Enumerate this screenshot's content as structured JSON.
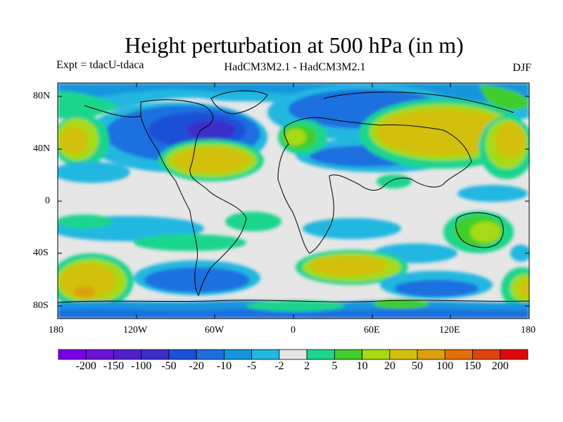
{
  "header": {
    "title": "Height perturbation at 500 hPa (in m)",
    "experiment": "Expt = tdacU-tdaca",
    "models": "HadCM3M2.1 - HadCM3M2.1",
    "season": "DJF"
  },
  "axes": {
    "lat_ticks": [
      "80N",
      "40N",
      "0",
      "40S",
      "80S"
    ],
    "lon_ticks": [
      "180",
      "120W",
      "60W",
      "0",
      "60E",
      "120E",
      "180"
    ]
  },
  "colorbar": {
    "colors": [
      "#7b00e8",
      "#6a13d8",
      "#5220c9",
      "#3a2ec9",
      "#1c4fd8",
      "#1d6fe0",
      "#1395dd",
      "#22b7e0",
      "#e6e6e6",
      "#1fd58c",
      "#3fce29",
      "#a6da14",
      "#d2c010",
      "#dca00b",
      "#e0700a",
      "#e0430d",
      "#dc0a0a"
    ],
    "labels": [
      "-200",
      "-150",
      "-100",
      "-50",
      "-20",
      "-10",
      "-5",
      "-2",
      "2",
      "5",
      "10",
      "20",
      "50",
      "100",
      "150",
      "200"
    ]
  },
  "chart_data": {
    "type": "contour-map",
    "variable": "Height perturbation at 500 hPa",
    "units": "m",
    "levels": [
      -200,
      -150,
      -100,
      -50,
      -20,
      -10,
      -5,
      -2,
      2,
      5,
      10,
      20,
      50,
      100,
      150,
      200
    ],
    "regions": [
      {
        "feature": "low",
        "lon_range": [
          -110,
          -20
        ],
        "lat_range": [
          40,
          70
        ],
        "value_range": [
          -50,
          -20
        ]
      },
      {
        "feature": "low",
        "lon_range": [
          20,
          140
        ],
        "lat_range": [
          50,
          80
        ],
        "value_range": [
          -20,
          -10
        ]
      },
      {
        "feature": "low",
        "lon_range": [
          30,
          100
        ],
        "lat_range": [
          25,
          45
        ],
        "value_range": [
          -20,
          -10
        ]
      },
      {
        "feature": "high",
        "lon_range": [
          -90,
          -40
        ],
        "lat_range": [
          18,
          40
        ],
        "value_range": [
          20,
          50
        ]
      },
      {
        "feature": "high",
        "lon_range": [
          100,
          -160
        ],
        "lat_range": [
          30,
          60
        ],
        "value_range": [
          20,
          50
        ]
      },
      {
        "feature": "high",
        "lon_range": [
          -175,
          -135
        ],
        "lat_range": [
          25,
          50
        ],
        "value_range": [
          20,
          50
        ]
      },
      {
        "feature": "high",
        "lon_range": [
          -5,
          20
        ],
        "lat_range": [
          45,
          60
        ],
        "value_range": [
          5,
          20
        ]
      },
      {
        "feature": "high",
        "lon_range": [
          5,
          60
        ],
        "lat_range": [
          -55,
          -35
        ],
        "value_range": [
          20,
          50
        ]
      },
      {
        "feature": "high",
        "lon_range": [
          -175,
          -125
        ],
        "lat_range": [
          -75,
          -40
        ],
        "value_range": [
          20,
          50
        ]
      },
      {
        "feature": "high",
        "lon_range": [
          160,
          180
        ],
        "lat_range": [
          -75,
          -40
        ],
        "value_range": [
          10,
          50
        ]
      },
      {
        "feature": "high",
        "lon_range": [
          120,
          155
        ],
        "lat_range": [
          -40,
          -15
        ],
        "value_range": [
          5,
          10
        ]
      },
      {
        "feature": "low",
        "lon_range": [
          -120,
          0
        ],
        "lat_range": [
          -60,
          -40
        ],
        "value_range": [
          -10,
          -5
        ]
      },
      {
        "feature": "low",
        "lon_range": [
          60,
          120
        ],
        "lat_range": [
          -70,
          -55
        ],
        "value_range": [
          -10,
          -5
        ]
      }
    ]
  }
}
